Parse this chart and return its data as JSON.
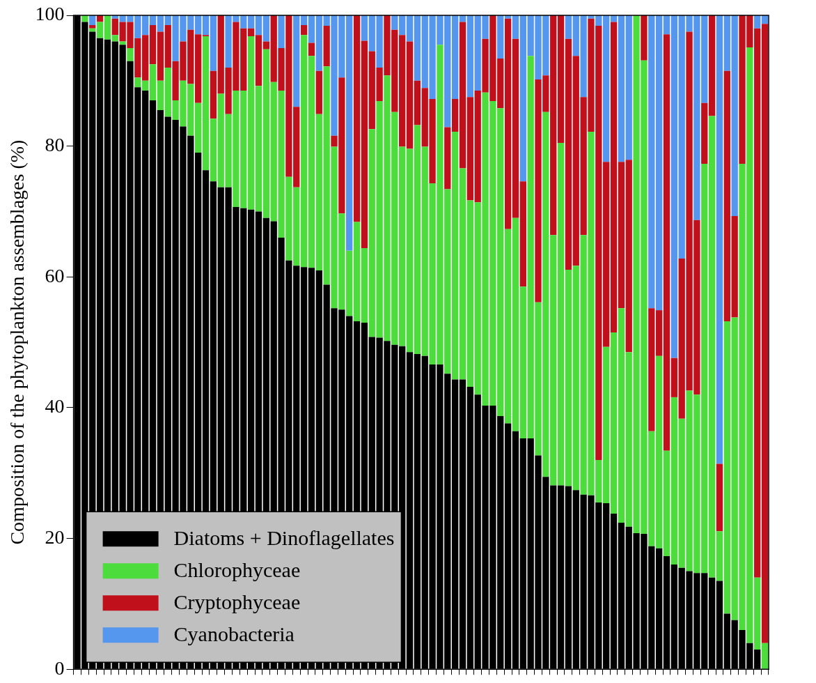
{
  "chart_data": {
    "type": "bar",
    "stacked": true,
    "ylabel": "Composition of the phytoplankton assemblages (%)",
    "ylim": [
      0,
      100
    ],
    "yticks": [
      0,
      20,
      40,
      60,
      80,
      100
    ],
    "tick_labels": "y",
    "legend": "bottom left",
    "categories": [
      null,
      null,
      null,
      null,
      null,
      null,
      null,
      null,
      null,
      null,
      null,
      null,
      null,
      null,
      null,
      null,
      null,
      null,
      null,
      null,
      null,
      null,
      null,
      null,
      null,
      null,
      null,
      null,
      null,
      null,
      null,
      null,
      null,
      null,
      null,
      null,
      null,
      null,
      null,
      null,
      null,
      null,
      null,
      null,
      null,
      null,
      null,
      null,
      null,
      null,
      null,
      null,
      null,
      null,
      null,
      null,
      null,
      null,
      null,
      null,
      null,
      null,
      null,
      null,
      null,
      null,
      null,
      null,
      null,
      null,
      null,
      null,
      null,
      null,
      null,
      null,
      null,
      null,
      null,
      null,
      null,
      null,
      null,
      null,
      null,
      null,
      null,
      null,
      null,
      null,
      null,
      null
    ],
    "series": [
      {
        "name": "Diatoms + Dinoflagellates",
        "color": "#000000",
        "values": [
          100,
          99,
          97.5,
          96.5,
          96.3,
          96,
          95.5,
          93,
          89,
          88.5,
          87,
          85.5,
          84.5,
          84,
          83,
          81.6,
          79,
          76.3,
          74.6,
          73.7,
          73.7,
          70.7,
          70.5,
          70.3,
          70,
          69,
          68.5,
          66,
          62.5,
          61.7,
          61.5,
          61.4,
          61,
          58.8,
          55.2,
          55,
          54,
          53.2,
          53,
          50.8,
          50.7,
          50.2,
          49.6,
          49.4,
          48.5,
          48.2,
          47.9,
          46.6,
          46.6,
          45.2,
          44.3,
          44.3,
          43.2,
          42,
          40.3,
          40.3,
          38.7,
          37.6,
          36.4,
          35.3,
          35.3,
          32.7,
          29.4,
          28.1,
          28.1,
          28,
          27.4,
          26.7,
          26.6,
          25.5,
          25.4,
          23.8,
          22.4,
          21.8,
          20.8,
          20.7,
          18.8,
          18.5,
          17.3,
          16,
          15.5,
          15,
          14.7,
          14.7,
          14,
          13.5,
          8.5,
          7.5,
          6,
          4,
          3,
          0
        ]
      },
      {
        "name": "Chlorophyceae",
        "color": "#4cdd3c",
        "values": [
          0,
          1,
          0.5,
          2.5,
          3.7,
          1,
          0.5,
          2,
          1.5,
          1.5,
          5.5,
          4.5,
          7.5,
          3,
          7,
          7.9,
          7.6,
          20.5,
          9.6,
          14.3,
          11.2,
          17.8,
          18,
          26.5,
          19.2,
          25.8,
          21.3,
          22.5,
          12.8,
          12,
          35.5,
          32.4,
          23.9,
          33.4,
          24.7,
          14.7,
          10,
          15.2,
          11.4,
          31.8,
          36.2,
          40.6,
          35.6,
          30.5,
          31.1,
          35,
          32,
          27.7,
          48.9,
          28.2,
          37.9,
          32.3,
          28.5,
          29.4,
          47.9,
          46.6,
          47.1,
          29.7,
          32.6,
          23.2,
          58.5,
          23.4,
          55.8,
          38.3,
          52.4,
          33.1,
          34.3,
          39.7,
          55.6,
          6.5,
          23.9,
          27.7,
          32.8,
          26.7,
          79.2,
          72.4,
          17.6,
          29.4,
          16.1,
          25.6,
          22.8,
          27.6,
          27.3,
          62.6,
          70.6,
          7.6,
          44.7,
          46.3,
          71.3,
          91.1,
          11,
          4
        ]
      },
      {
        "name": "Cryptophyceae",
        "color": "#c0101c",
        "values": [
          0,
          0,
          0.5,
          1,
          0,
          2.5,
          3,
          4,
          6,
          7,
          6,
          7.5,
          6.5,
          6,
          6,
          8.3,
          10.5,
          0.2,
          7.3,
          12,
          7.1,
          10.5,
          9.5,
          1.2,
          7.8,
          1.2,
          10.2,
          6.5,
          24.7,
          12.3,
          1.5,
          2,
          6.6,
          6.2,
          1.7,
          20.8,
          0,
          31.6,
          31.7,
          11.9,
          5.1,
          9.2,
          12.6,
          17.1,
          16.4,
          6.8,
          9,
          12.9,
          0,
          9.5,
          5,
          22.4,
          15.8,
          17.1,
          8.2,
          13.1,
          7.6,
          32.2,
          27.4,
          16.1,
          0,
          34.1,
          5.6,
          33.6,
          19.5,
          35.3,
          32.1,
          21.1,
          17.3,
          66.4,
          28.3,
          47.5,
          22.4,
          29.4,
          0,
          6.9,
          18.8,
          7,
          63.7,
          6,
          24.5,
          54.9,
          26.7,
          9.3,
          15.4,
          10.3,
          38.3,
          15.5,
          22.7,
          4.9,
          84,
          94.7
        ]
      },
      {
        "name": "Cyanobacteria",
        "color": "#5597ee",
        "values": [
          0,
          0,
          1.5,
          0,
          0,
          0.5,
          1,
          1,
          3.5,
          3,
          1.5,
          2.5,
          1.5,
          7,
          4,
          2.2,
          2.9,
          3,
          8.5,
          0,
          8,
          1,
          2,
          2,
          3,
          4,
          0,
          5,
          0,
          14,
          1.5,
          4.2,
          8.5,
          1.6,
          18.4,
          9.5,
          36,
          0,
          3.9,
          5.5,
          8,
          0,
          2.2,
          3,
          4,
          10,
          11.1,
          12.8,
          4.5,
          17.1,
          12.8,
          1,
          12.5,
          11.5,
          3.6,
          0,
          6.6,
          0.5,
          3.6,
          25.4,
          6.2,
          9.8,
          9.2,
          0,
          0,
          3.6,
          6.2,
          12.5,
          0.5,
          1.6,
          22.4,
          1,
          22.4,
          22.1,
          0,
          0,
          44.8,
          45.1,
          2.9,
          52.4,
          37.2,
          2.5,
          31.3,
          13.4,
          0,
          68.6,
          8.5,
          30.7,
          0,
          0,
          2,
          1.3
        ]
      }
    ]
  }
}
